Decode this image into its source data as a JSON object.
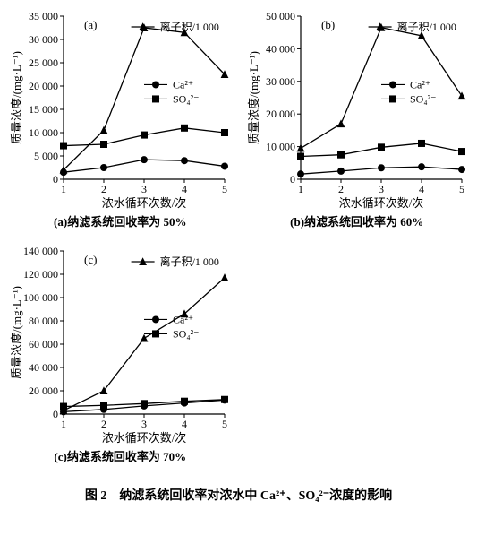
{
  "figure": {
    "main_caption": "图 2　纳滤系统回收率对浓水中 Ca²⁺、SO₄²⁻浓度的影响",
    "colors": {
      "background": "#ffffff",
      "axis": "#000000",
      "line": "#000000",
      "text": "#000000"
    },
    "fontsizes": {
      "tick": 12,
      "axis_label": 13,
      "subcap": 13,
      "main_caption": 14
    },
    "panels": [
      {
        "id": "a",
        "letter": "(a)",
        "sub_caption": "(a)纳滤系统回收率为 50%",
        "x_label": "浓水循环次数/次",
        "y_label": "质量浓度/(mg·L⁻¹)",
        "x_ticks": [
          1,
          2,
          3,
          4,
          5
        ],
        "y_ticks": [
          0,
          5000,
          10000,
          15000,
          20000,
          25000,
          30000,
          35000
        ],
        "y_tick_labels": [
          "0",
          "5 000",
          "10 000",
          "15 000",
          "20 000",
          "25 000",
          "30 000",
          "35 000"
        ],
        "ylim": [
          0,
          35000
        ],
        "series": {
          "ion_product": {
            "label": "离子积/1 000",
            "marker": "triangle",
            "values": [
              2000,
              10500,
              32500,
              31500,
              22500
            ]
          },
          "ca": {
            "label": "Ca²⁺",
            "marker": "circle",
            "values": [
              1500,
              2500,
              4200,
              4000,
              2800
            ]
          },
          "so4": {
            "label": "SO₄²⁻",
            "marker": "square",
            "values": [
              7200,
              7500,
              9500,
              11000,
              10000
            ]
          }
        }
      },
      {
        "id": "b",
        "letter": "(b)",
        "sub_caption": "(b)纳滤系统回收率为 60%",
        "x_label": "浓水循环次数/次",
        "y_label": "质量浓度/(mg·L⁻¹)",
        "x_ticks": [
          1,
          2,
          3,
          4,
          5
        ],
        "y_ticks": [
          0,
          10000,
          20000,
          30000,
          40000,
          50000
        ],
        "y_tick_labels": [
          "0",
          "10 000",
          "20 000",
          "30 000",
          "40 000",
          "50 000"
        ],
        "ylim": [
          0,
          50000
        ],
        "series": {
          "ion_product": {
            "label": "离子积/1 000",
            "marker": "triangle",
            "values": [
              9500,
              17000,
              46500,
              44000,
              25500
            ]
          },
          "ca": {
            "label": "Ca²⁺",
            "marker": "circle",
            "values": [
              1600,
              2500,
              3500,
              3800,
              3000
            ]
          },
          "so4": {
            "label": "SO₄²⁻",
            "marker": "square",
            "values": [
              7000,
              7500,
              9800,
              11000,
              8500
            ]
          }
        }
      },
      {
        "id": "c",
        "letter": "(c)",
        "sub_caption": "(c)纳滤系统回收率为 70%",
        "x_label": "浓水循环次数/次",
        "y_label": "质量浓度/(mg·L⁻¹)",
        "x_ticks": [
          1,
          2,
          3,
          4,
          5
        ],
        "y_ticks": [
          0,
          20000,
          40000,
          60000,
          80000,
          100000,
          120000,
          140000
        ],
        "y_tick_labels": [
          "0",
          "20 000",
          "40 000",
          "60 000",
          "80 000",
          "100 000",
          "120 000",
          "140 000"
        ],
        "ylim": [
          0,
          140000
        ],
        "series": {
          "ion_product": {
            "label": "离子积/1 000",
            "marker": "triangle",
            "values": [
              3000,
              20000,
              65000,
              86000,
              117000
            ]
          },
          "ca": {
            "label": "Ca²⁺",
            "marker": "circle",
            "values": [
              2000,
              4000,
              7000,
              9500,
              12000
            ]
          },
          "so4": {
            "label": "SO₄²⁻",
            "marker": "square",
            "values": [
              6500,
              7500,
              9000,
              11000,
              12500
            ]
          }
        }
      }
    ]
  }
}
